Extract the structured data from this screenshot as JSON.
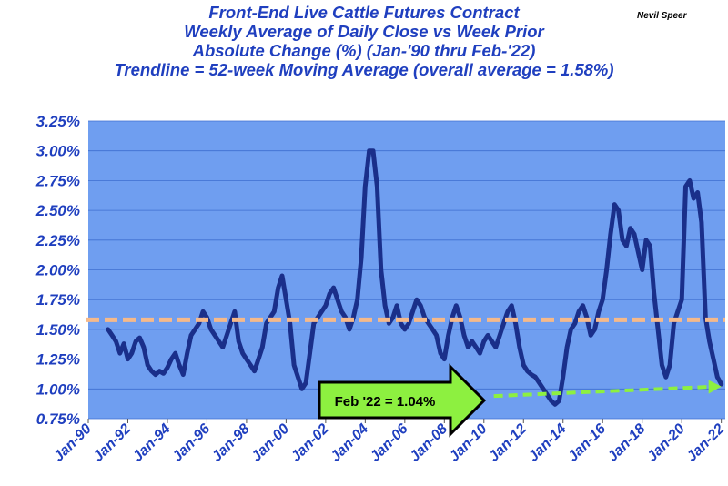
{
  "author": "Nevil Speer",
  "chart_data": {
    "type": "line",
    "title_lines": [
      "Front-End Live Cattle Futures Contract",
      "Weekly Average of Daily Close vs Week Prior",
      "Absolute Change (%) (Jan-'90 thru Feb-'22)",
      "Trendline = 52-week Moving Average (overall average = 1.58%)"
    ],
    "ylim": [
      0.75,
      3.25
    ],
    "y_ticks": [
      "0.75%",
      "1.00%",
      "1.25%",
      "1.50%",
      "1.75%",
      "2.00%",
      "2.25%",
      "2.50%",
      "2.75%",
      "3.00%",
      "3.25%"
    ],
    "x_range": [
      1990,
      2022.2
    ],
    "x_tick_labels": [
      "Jan-90",
      "Jan-92",
      "Jan-94",
      "Jan-96",
      "Jan-98",
      "Jan-00",
      "Jan-02",
      "Jan-04",
      "Jan-06",
      "Jan-08",
      "Jan-10",
      "Jan-12",
      "Jan-14",
      "Jan-16",
      "Jan-18",
      "Jan-20",
      "Jan-22"
    ],
    "grid": true,
    "colors": {
      "plot_bg": "#6f9ef0",
      "line": "#1a2f8a",
      "average": "#f5b98a",
      "arrow": "#8df040",
      "axis_text": "#1f3fbf"
    },
    "series": [
      {
        "x": [
          1991.0,
          1991.2,
          1991.4,
          1991.6,
          1991.8,
          1992.0,
          1992.2,
          1992.4,
          1992.6,
          1992.8,
          1993.0,
          1993.2,
          1993.4,
          1993.6,
          1993.8,
          1994.0,
          1994.2,
          1994.4,
          1994.6,
          1994.8,
          1995.0,
          1995.2,
          1995.4,
          1995.6,
          1995.8,
          1996.0,
          1996.2,
          1996.4,
          1996.6,
          1996.8,
          1997.0,
          1997.2,
          1997.4,
          1997.6,
          1997.8,
          1998.0,
          1998.2,
          1998.4,
          1998.6,
          1998.8,
          1999.0,
          1999.2,
          1999.4,
          1999.6,
          1999.8,
          2000.0,
          2000.2,
          2000.4,
          2000.6,
          2000.8,
          2001.0,
          2001.2,
          2001.4,
          2001.6,
          2001.8,
          2002.0,
          2002.2,
          2002.4,
          2002.6,
          2002.8,
          2003.0,
          2003.2,
          2003.4,
          2003.6,
          2003.8,
          2004.0,
          2004.2,
          2004.4,
          2004.6,
          2004.8,
          2005.0,
          2005.2,
          2005.4,
          2005.6,
          2005.8,
          2006.0,
          2006.2,
          2006.4,
          2006.6,
          2006.8,
          2007.0,
          2007.2,
          2007.4,
          2007.6,
          2007.8,
          2008.0,
          2008.2,
          2008.4,
          2008.6,
          2008.8,
          2009.0,
          2009.2,
          2009.4,
          2009.6,
          2009.8,
          2010.0,
          2010.2,
          2010.4,
          2010.6,
          2010.8,
          2011.0,
          2011.2,
          2011.4,
          2011.6,
          2011.8,
          2012.0,
          2012.2,
          2012.4,
          2012.6,
          2012.8,
          2013.0,
          2013.2,
          2013.4,
          2013.6,
          2013.8,
          2014.0,
          2014.2,
          2014.4,
          2014.6,
          2014.8,
          2015.0,
          2015.2,
          2015.4,
          2015.6,
          2015.8,
          2016.0,
          2016.2,
          2016.4,
          2016.6,
          2016.8,
          2017.0,
          2017.2,
          2017.4,
          2017.6,
          2017.8,
          2018.0,
          2018.2,
          2018.4,
          2018.6,
          2018.8,
          2019.0,
          2019.2,
          2019.4,
          2019.6,
          2019.8,
          2020.0,
          2020.2,
          2020.4,
          2020.6,
          2020.8,
          2021.0,
          2021.2,
          2021.4,
          2021.6,
          2021.8,
          2022.0
        ],
        "values": [
          1.5,
          1.45,
          1.4,
          1.3,
          1.38,
          1.25,
          1.3,
          1.4,
          1.43,
          1.35,
          1.2,
          1.15,
          1.12,
          1.15,
          1.13,
          1.18,
          1.25,
          1.3,
          1.2,
          1.12,
          1.3,
          1.45,
          1.5,
          1.55,
          1.65,
          1.6,
          1.5,
          1.45,
          1.4,
          1.35,
          1.45,
          1.55,
          1.65,
          1.4,
          1.3,
          1.25,
          1.2,
          1.15,
          1.25,
          1.35,
          1.55,
          1.6,
          1.65,
          1.85,
          1.95,
          1.75,
          1.55,
          1.2,
          1.1,
          1.0,
          1.05,
          1.3,
          1.55,
          1.6,
          1.65,
          1.7,
          1.8,
          1.85,
          1.75,
          1.65,
          1.6,
          1.5,
          1.6,
          1.75,
          2.1,
          2.7,
          3.0,
          3.0,
          2.7,
          2.0,
          1.7,
          1.55,
          1.6,
          1.7,
          1.55,
          1.5,
          1.55,
          1.65,
          1.75,
          1.7,
          1.6,
          1.55,
          1.5,
          1.45,
          1.3,
          1.25,
          1.45,
          1.6,
          1.7,
          1.6,
          1.45,
          1.35,
          1.4,
          1.35,
          1.3,
          1.4,
          1.45,
          1.4,
          1.35,
          1.45,
          1.55,
          1.65,
          1.7,
          1.55,
          1.35,
          1.2,
          1.15,
          1.12,
          1.1,
          1.05,
          1.0,
          0.95,
          0.9,
          0.87,
          0.9,
          1.1,
          1.35,
          1.5,
          1.55,
          1.65,
          1.7,
          1.6,
          1.45,
          1.5,
          1.65,
          1.75,
          2.0,
          2.3,
          2.55,
          2.5,
          2.25,
          2.2,
          2.35,
          2.3,
          2.15,
          2.0,
          2.25,
          2.2,
          1.8,
          1.5,
          1.2,
          1.1,
          1.2,
          1.55,
          1.65,
          1.75,
          2.7,
          2.75,
          2.6,
          2.65,
          2.4,
          1.6,
          1.4,
          1.25,
          1.1,
          1.04
        ]
      }
    ],
    "average_line": {
      "label": "52-week Moving Average (overall average = 1.58%)",
      "value": 1.58
    },
    "callout": {
      "text": "Feb '22 = 1.04%",
      "value": 1.04
    },
    "trend_arrow": {
      "x_start": 2010.5,
      "y_start": 0.94,
      "x_end": 2022.0,
      "y_end": 1.02
    }
  }
}
